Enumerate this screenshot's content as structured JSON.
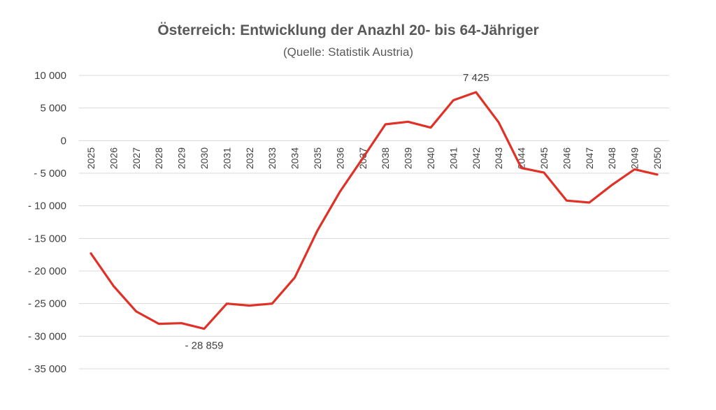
{
  "chart_data": {
    "type": "line",
    "title": "Österreich: Entwicklung der Anazhl 20- bis 64-Jähriger",
    "subtitle": "(Quelle: Statistik Austria)",
    "xlabel": "",
    "ylabel": "",
    "ylim": [
      -35000,
      10000
    ],
    "yticks": [
      10000,
      5000,
      0,
      -5000,
      -10000,
      -15000,
      -20000,
      -25000,
      -30000,
      -35000
    ],
    "ytick_labels": [
      "10 000",
      "5 000",
      "0",
      "- 5 000",
      "- 10 000",
      "- 15 000",
      "- 20 000",
      "- 25 000",
      "- 30 000",
      "- 35 000"
    ],
    "grid": true,
    "legend": "none",
    "categories": [
      "2025",
      "2026",
      "2027",
      "2028",
      "2029",
      "2030",
      "2031",
      "2032",
      "2033",
      "2034",
      "2035",
      "2036",
      "2037",
      "2038",
      "2039",
      "2040",
      "2041",
      "2042",
      "2043",
      "2044",
      "2045",
      "2046",
      "2047",
      "2048",
      "2049",
      "2050"
    ],
    "series": [
      {
        "color": "#e03127",
        "values": [
          -17300,
          -22300,
          -26200,
          -28100,
          -28000,
          -28859,
          -25000,
          -25300,
          -25000,
          -21000,
          -13800,
          -7800,
          -2700,
          2500,
          2900,
          2000,
          6200,
          7425,
          2800,
          -4200,
          -4900,
          -9200,
          -9500,
          -6800,
          -4400,
          -5200
        ]
      }
    ],
    "data_labels": [
      {
        "index": 5,
        "text": "- 28 859",
        "position": "below"
      },
      {
        "index": 17,
        "text": "7 425",
        "position": "above"
      }
    ]
  }
}
